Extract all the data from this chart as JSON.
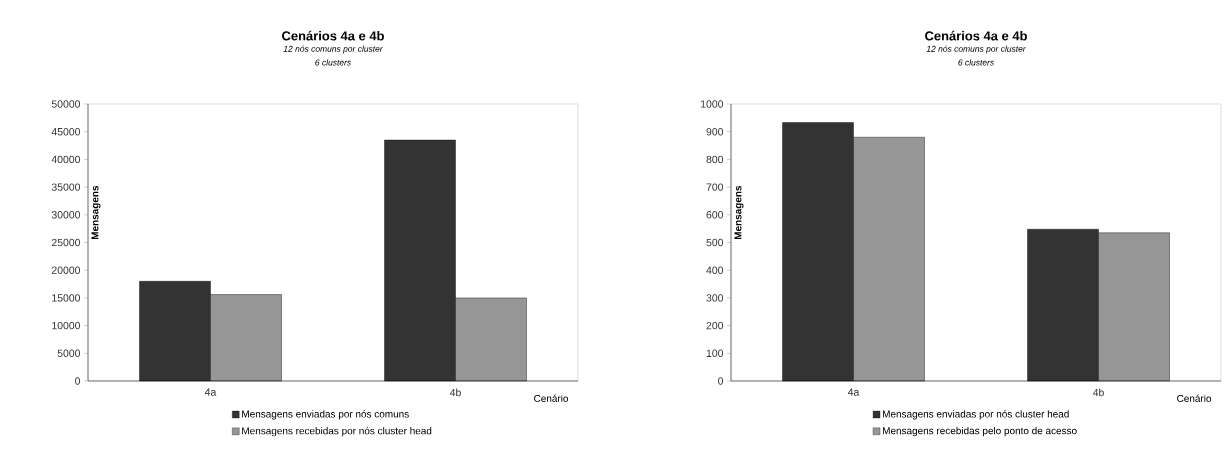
{
  "chart_data": [
    {
      "type": "bar",
      "title": "Cenários 4a e 4b",
      "subtitle": "12 nós comuns por cluster",
      "annotations": [
        "6 clusters"
      ],
      "xlabel": "Cenário",
      "ylabel": "Mensagens",
      "categories": [
        "4a",
        "4b"
      ],
      "ylim": [
        0,
        50000
      ],
      "yticks": [
        0,
        5000,
        10000,
        15000,
        20000,
        25000,
        30000,
        35000,
        40000,
        45000,
        50000
      ],
      "legend": "bottom",
      "series": [
        {
          "name": "Mensagens enviadas por nós comuns",
          "color": "#333333",
          "values": [
            18000,
            43500
          ]
        },
        {
          "name": "Mensagens recebidas por nós cluster head",
          "color": "#969696",
          "values": [
            15600,
            15000
          ]
        }
      ]
    },
    {
      "type": "bar",
      "title": "Cenários 4a e 4b",
      "subtitle": "12 nós comuns por cluster",
      "annotations": [
        "6 clusters"
      ],
      "xlabel": "Cenário",
      "ylabel": "Mensagens",
      "categories": [
        "4a",
        "4b"
      ],
      "ylim": [
        0,
        1000
      ],
      "yticks": [
        0,
        100,
        200,
        300,
        400,
        500,
        600,
        700,
        800,
        900,
        1000
      ],
      "legend": "bottom",
      "series": [
        {
          "name": "Mensagens enviadas por nós cluster head",
          "color": "#333333",
          "values": [
            933,
            548
          ]
        },
        {
          "name": "Mensagens recebidas pelo ponto de acesso",
          "color": "#969696",
          "values": [
            880,
            535
          ]
        }
      ]
    }
  ]
}
